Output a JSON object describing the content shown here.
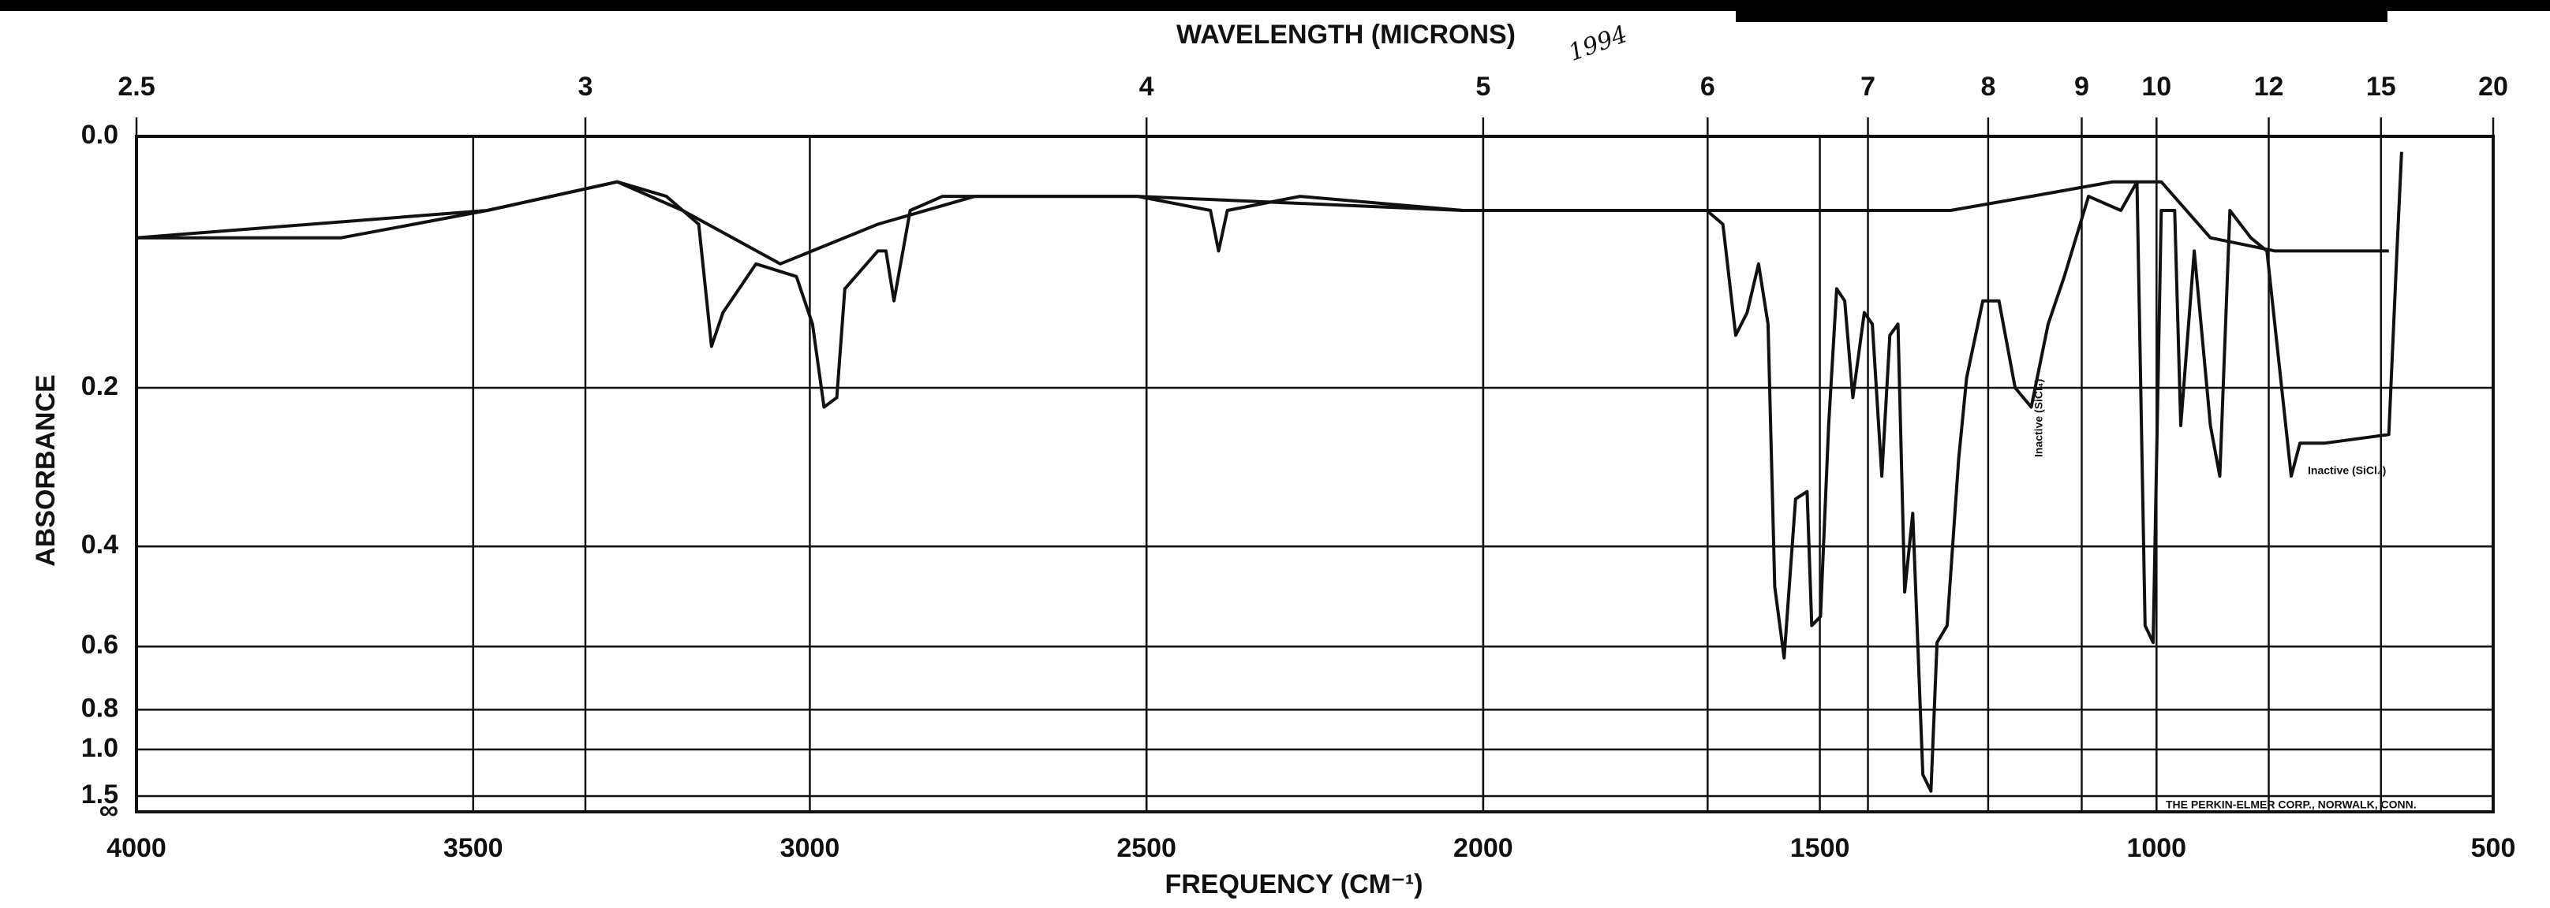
{
  "chart_data": {
    "type": "line",
    "x_label": "FREQUENCY (CM⁻¹)",
    "x2_label": "WAVELENGTH (MICRONS)",
    "y_label": "ABSORBANCE",
    "xlim": [
      4000,
      500
    ],
    "xticks": [
      4000,
      3500,
      3000,
      2500,
      2000,
      1500,
      1000,
      500
    ],
    "x2_scale": "reciprocal",
    "x2lim": [
      2.5,
      20
    ],
    "x2ticks": [
      2.5,
      3,
      4,
      5,
      6,
      7,
      8,
      9,
      10,
      12,
      15,
      20
    ],
    "y_scale": "transmittance",
    "ylim": [
      0,
      1.5
    ],
    "yticks": [
      {
        "value": 0,
        "label": "0.0"
      },
      0.2,
      0.4,
      0.6,
      0.8,
      {
        "value": 1,
        "label": "1.0"
      },
      1.5
    ],
    "y_bottom_label": "∞",
    "grid": true,
    "annotations": [
      "1994",
      "Inactive (SiCl₄)",
      "Inactive (SiCl₄)",
      "THE PERKIN-ELMER CORP., NORWALK, CONN."
    ],
    "series": [
      {
        "color": "#111111",
        "x": [
          4000,
          3889,
          3696,
          3479,
          3286,
          3213,
          3165,
          3146,
          3129,
          3080,
          3020,
          2996,
          2979,
          2960,
          2948,
          2899,
          2887,
          2875,
          2851,
          2803,
          2634,
          2513,
          2405,
          2393,
          2380,
          2272,
          2030,
          1910,
          1789,
          1668,
          1644,
          1625,
          1608,
          1591,
          1577,
          1567,
          1553,
          1536,
          1519,
          1512,
          1499,
          1487,
          1475,
          1463,
          1451,
          1434,
          1422,
          1408,
          1396,
          1384,
          1374,
          1362,
          1347,
          1335,
          1326,
          1311,
          1294,
          1282,
          1258,
          1234,
          1210,
          1186,
          1161,
          1137,
          1101,
          1053,
          1029,
          1017,
          1005,
          993,
          973,
          964,
          944,
          920,
          906,
          891,
          860,
          836,
          800,
          787,
          751,
          655,
          643,
          636
        ],
        "values": [
          0.07,
          0.07,
          0.07,
          0.05,
          0.03,
          0.04,
          0.06,
          0.16,
          0.13,
          0.09,
          0.1,
          0.14,
          0.22,
          0.21,
          0.11,
          0.08,
          0.08,
          0.12,
          0.05,
          0.04,
          0.04,
          0.04,
          0.05,
          0.08,
          0.05,
          0.04,
          0.05,
          0.05,
          0.05,
          0.05,
          0.06,
          0.15,
          0.13,
          0.09,
          0.14,
          0.47,
          0.63,
          0.33,
          0.32,
          0.55,
          0.53,
          0.24,
          0.11,
          0.12,
          0.21,
          0.13,
          0.14,
          0.3,
          0.15,
          0.14,
          0.48,
          0.35,
          1.2,
          1.41,
          0.59,
          0.55,
          0.28,
          0.19,
          0.12,
          0.12,
          0.2,
          0.22,
          0.14,
          0.1,
          0.04,
          0.05,
          0.03,
          0.55,
          0.59,
          0.05,
          0.05,
          0.24,
          0.08,
          0.24,
          0.3,
          0.05,
          0.07,
          0.08,
          0.3,
          0.26,
          0.26,
          0.25,
          0.08,
          0.01
        ]
      },
      {
        "color": "#111111",
        "x": [
          4000,
          3479,
          3286,
          3189,
          3044,
          2899,
          2755,
          2513,
          2030,
          1789,
          1548,
          1306,
          1186,
          1065,
          993,
          920,
          824,
          655
        ],
        "values": [
          0.07,
          0.05,
          0.03,
          0.05,
          0.09,
          0.06,
          0.04,
          0.04,
          0.05,
          0.05,
          0.05,
          0.05,
          0.04,
          0.03,
          0.03,
          0.07,
          0.08,
          0.08
        ]
      }
    ]
  }
}
